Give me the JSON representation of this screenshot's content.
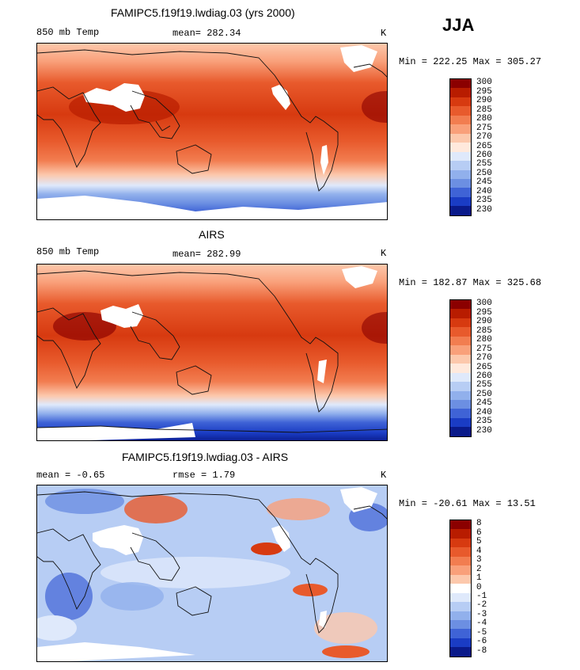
{
  "season": "JJA",
  "panels": [
    {
      "title": "FAMIPC5.f19f19.lwdiag.03 (yrs 2000)",
      "left_label": "850 mb Temp",
      "mid_label": "mean=  282.34",
      "units": "K",
      "minmax": "Min = 222.25 Max = 305.27"
    },
    {
      "title": "AIRS",
      "left_label": "850 mb Temp",
      "mid_label": "mean=  282.99",
      "units": "K",
      "minmax": "Min = 182.87 Max = 325.68"
    },
    {
      "title": "FAMIPC5.f19f19.lwdiag.03 - AIRS",
      "left_label": "mean =   -0.65",
      "mid_label": "rmse =    1.79",
      "units": "K",
      "minmax": "Min = -20.61 Max =  13.51"
    }
  ],
  "chart_data": [
    {
      "type": "heatmap",
      "title": "FAMIPC5.f19f19.lwdiag.03 (yrs 2000)",
      "subtitle": "850 mb Temp",
      "units": "K",
      "mean": 282.34,
      "min": 222.25,
      "max": 305.27,
      "colorbar_levels": [
        "300",
        "295",
        "290",
        "285",
        "280",
        "275",
        "270",
        "265",
        "260",
        "255",
        "250",
        "245",
        "240",
        "235",
        "230"
      ],
      "colorbar_colors": [
        "#8b0000",
        "#b81c00",
        "#d73a10",
        "#e85a2c",
        "#f27d50",
        "#f9a07a",
        "#fcc8ac",
        "#ffe9dc",
        "#dfe9fb",
        "#b7cdf4",
        "#91b0ec",
        "#6c8fe2",
        "#3f63d6",
        "#1a3cc4",
        "#0a1a8a"
      ]
    },
    {
      "type": "heatmap",
      "title": "AIRS",
      "subtitle": "850 mb Temp",
      "units": "K",
      "mean": 282.99,
      "min": 182.87,
      "max": 325.68,
      "colorbar_levels": [
        "300",
        "295",
        "290",
        "285",
        "280",
        "275",
        "270",
        "265",
        "260",
        "255",
        "250",
        "245",
        "240",
        "235",
        "230"
      ],
      "colorbar_colors": [
        "#8b0000",
        "#b81c00",
        "#d73a10",
        "#e85a2c",
        "#f27d50",
        "#f9a07a",
        "#fcc8ac",
        "#ffe9dc",
        "#dfe9fb",
        "#b7cdf4",
        "#91b0ec",
        "#6c8fe2",
        "#3f63d6",
        "#1a3cc4",
        "#0a1a8a"
      ]
    },
    {
      "type": "heatmap",
      "title": "FAMIPC5.f19f19.lwdiag.03 - AIRS",
      "units": "K",
      "mean": -0.65,
      "rmse": 1.79,
      "min": -20.61,
      "max": 13.51,
      "colorbar_levels": [
        "8",
        "6",
        "5",
        "4",
        "3",
        "2",
        "1",
        "0",
        "-1",
        "-2",
        "-3",
        "-4",
        "-5",
        "-6",
        "-8"
      ],
      "colorbar_colors": [
        "#8b0000",
        "#b81c00",
        "#d73a10",
        "#e85a2c",
        "#f27d50",
        "#f9a07a",
        "#fcc8ac",
        "#ffffff",
        "#dfe9fb",
        "#b7cdf4",
        "#91b0ec",
        "#6c8fe2",
        "#3f63d6",
        "#1a3cc4",
        "#0a1a8a"
      ]
    }
  ]
}
